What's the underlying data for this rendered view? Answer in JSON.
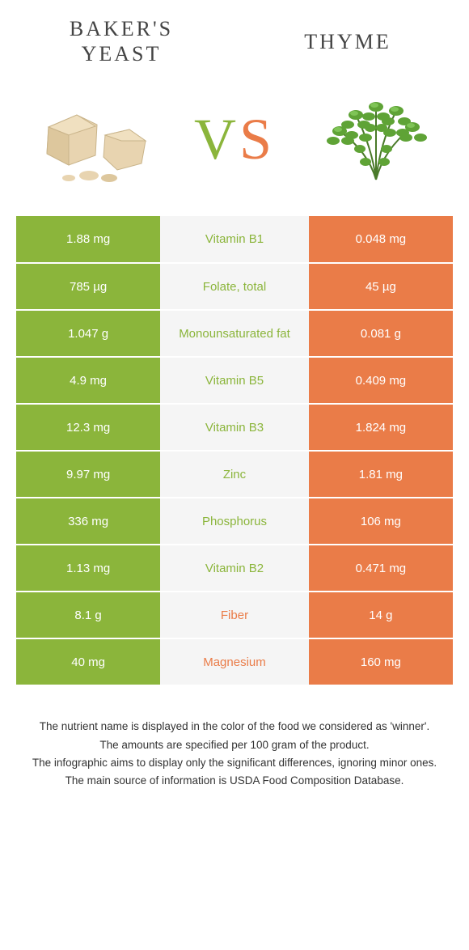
{
  "colors": {
    "left_bg": "#8bb53b",
    "right_bg": "#ea7c48",
    "mid_bg": "#f5f5f5",
    "mid_text_left": "#8bb53b",
    "mid_text_right": "#ea7c48",
    "cell_text": "#ffffff"
  },
  "header": {
    "left_title": "BAKER'S YEAST",
    "right_title": "THYME",
    "vs_v": "V",
    "vs_s": "S"
  },
  "rows": [
    {
      "left": "1.88 mg",
      "label": "Vitamin B1",
      "right": "0.048 mg",
      "winner": "left"
    },
    {
      "left": "785 µg",
      "label": "Folate, total",
      "right": "45 µg",
      "winner": "left"
    },
    {
      "left": "1.047 g",
      "label": "Monounsaturated fat",
      "right": "0.081 g",
      "winner": "left"
    },
    {
      "left": "4.9 mg",
      "label": "Vitamin B5",
      "right": "0.409 mg",
      "winner": "left"
    },
    {
      "left": "12.3 mg",
      "label": "Vitamin B3",
      "right": "1.824 mg",
      "winner": "left"
    },
    {
      "left": "9.97 mg",
      "label": "Zinc",
      "right": "1.81 mg",
      "winner": "left"
    },
    {
      "left": "336 mg",
      "label": "Phosphorus",
      "right": "106 mg",
      "winner": "left"
    },
    {
      "left": "1.13 mg",
      "label": "Vitamin B2",
      "right": "0.471 mg",
      "winner": "left"
    },
    {
      "left": "8.1 g",
      "label": "Fiber",
      "right": "14 g",
      "winner": "right"
    },
    {
      "left": "40 mg",
      "label": "Magnesium",
      "right": "160 mg",
      "winner": "right"
    }
  ],
  "footnotes": [
    "The nutrient name is displayed in the color of the food we considered as 'winner'.",
    "The amounts are specified per 100 gram of the product.",
    "The infographic aims to display only the significant differences, ignoring minor ones.",
    "The main source of information is USDA Food Composition Database."
  ]
}
